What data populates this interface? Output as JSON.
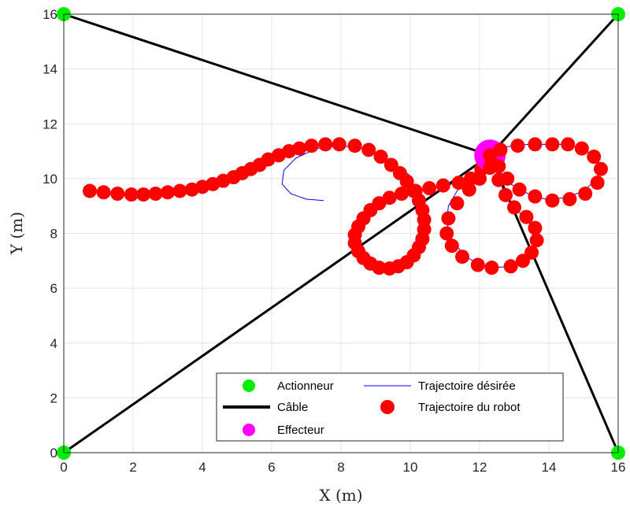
{
  "chart_data": {
    "type": "scatter",
    "xlabel": "X (m)",
    "ylabel": "Y (m)",
    "xlim": [
      0,
      16
    ],
    "ylim": [
      0,
      16
    ],
    "xticks": [
      0,
      2,
      4,
      6,
      8,
      10,
      12,
      14,
      16
    ],
    "yticks": [
      0,
      2,
      4,
      6,
      8,
      10,
      12,
      14,
      16
    ],
    "grid": true,
    "legend_position": "bottom-center",
    "legend": {
      "actuator": "Actionneur",
      "cable": "Câble",
      "effector": "Effecteur",
      "desired": "Trajectoire désirée",
      "robot": "Trajectoire du robot"
    },
    "colors": {
      "actuator": "#00ee00",
      "cable": "#000000",
      "effector": "#ff00ff",
      "desired": "#0000ff",
      "robot": "#ff0000"
    },
    "actuators": [
      [
        0,
        16
      ],
      [
        16,
        16
      ],
      [
        0,
        0
      ],
      [
        16,
        0
      ]
    ],
    "effector": [
      12.3,
      10.85
    ],
    "desired_trajectory": [
      [
        7.5,
        9.2
      ],
      [
        7.0,
        9.25
      ],
      [
        6.55,
        9.45
      ],
      [
        6.3,
        9.8
      ],
      [
        6.35,
        10.3
      ],
      [
        6.7,
        10.75
      ],
      [
        7.3,
        11.1
      ],
      [
        8.0,
        11.2
      ],
      [
        8.6,
        11.1
      ],
      [
        9.1,
        10.85
      ],
      [
        9.6,
        10.5
      ],
      [
        9.95,
        10.15
      ],
      [
        10.05,
        9.8
      ],
      [
        10.3,
        9.55
      ],
      [
        10.4,
        9.0
      ],
      [
        10.45,
        8.4
      ],
      [
        10.4,
        7.8
      ],
      [
        10.15,
        7.25
      ],
      [
        9.75,
        6.85
      ],
      [
        9.25,
        6.75
      ],
      [
        8.75,
        6.95
      ],
      [
        8.45,
        7.4
      ],
      [
        8.45,
        8.0
      ],
      [
        8.65,
        8.6
      ],
      [
        9.1,
        9.15
      ],
      [
        9.6,
        9.45
      ],
      [
        10.2,
        9.55
      ],
      [
        10.8,
        9.7
      ],
      [
        11.4,
        9.85
      ],
      [
        11.85,
        10.05
      ],
      [
        12.1,
        10.4
      ],
      [
        12.3,
        10.85
      ],
      [
        12.7,
        11.15
      ],
      [
        13.4,
        11.25
      ],
      [
        14.1,
        11.25
      ],
      [
        14.6,
        11.25
      ],
      [
        15.1,
        11.0
      ],
      [
        15.45,
        10.6
      ],
      [
        15.4,
        10.0
      ],
      [
        15.0,
        9.55
      ],
      [
        14.5,
        9.3
      ],
      [
        13.9,
        9.25
      ],
      [
        13.4,
        9.45
      ],
      [
        12.9,
        9.8
      ],
      [
        12.55,
        10.3
      ],
      [
        12.3,
        10.85
      ],
      [
        12.0,
        10.4
      ],
      [
        11.7,
        10.0
      ],
      [
        11.35,
        9.55
      ],
      [
        11.1,
        9.0
      ],
      [
        11.05,
        8.4
      ],
      [
        11.2,
        7.8
      ],
      [
        11.55,
        7.2
      ],
      [
        12.0,
        6.85
      ],
      [
        12.4,
        6.75
      ],
      [
        12.9,
        6.8
      ],
      [
        13.3,
        7.0
      ],
      [
        13.55,
        7.4
      ],
      [
        13.6,
        7.95
      ],
      [
        13.4,
        8.45
      ],
      [
        13.0,
        8.95
      ],
      [
        12.7,
        9.5
      ],
      [
        12.55,
        10.1
      ],
      [
        12.4,
        10.7
      ]
    ],
    "robot_trajectory": [
      [
        0.75,
        9.55
      ],
      [
        1.15,
        9.5
      ],
      [
        1.55,
        9.45
      ],
      [
        1.95,
        9.42
      ],
      [
        2.3,
        9.42
      ],
      [
        2.65,
        9.45
      ],
      [
        3.0,
        9.5
      ],
      [
        3.35,
        9.55
      ],
      [
        3.7,
        9.6
      ],
      [
        4.0,
        9.7
      ],
      [
        4.3,
        9.8
      ],
      [
        4.6,
        9.92
      ],
      [
        4.9,
        10.05
      ],
      [
        5.15,
        10.2
      ],
      [
        5.4,
        10.35
      ],
      [
        5.65,
        10.5
      ],
      [
        5.9,
        10.7
      ],
      [
        6.2,
        10.85
      ],
      [
        6.5,
        11.0
      ],
      [
        6.8,
        11.1
      ],
      [
        7.15,
        11.2
      ],
      [
        7.55,
        11.25
      ],
      [
        7.95,
        11.25
      ],
      [
        8.4,
        11.2
      ],
      [
        8.8,
        11.05
      ],
      [
        9.15,
        10.8
      ],
      [
        9.45,
        10.5
      ],
      [
        9.7,
        10.2
      ],
      [
        9.9,
        9.9
      ],
      [
        10.1,
        9.55
      ],
      [
        10.25,
        9.2
      ],
      [
        10.35,
        8.85
      ],
      [
        10.4,
        8.5
      ],
      [
        10.4,
        8.15
      ],
      [
        10.35,
        7.8
      ],
      [
        10.25,
        7.5
      ],
      [
        10.1,
        7.2
      ],
      [
        9.9,
        6.95
      ],
      [
        9.65,
        6.8
      ],
      [
        9.4,
        6.72
      ],
      [
        9.1,
        6.75
      ],
      [
        8.85,
        6.9
      ],
      [
        8.65,
        7.1
      ],
      [
        8.5,
        7.35
      ],
      [
        8.4,
        7.65
      ],
      [
        8.4,
        7.95
      ],
      [
        8.5,
        8.25
      ],
      [
        8.65,
        8.55
      ],
      [
        8.85,
        8.85
      ],
      [
        9.1,
        9.1
      ],
      [
        9.4,
        9.3
      ],
      [
        9.75,
        9.45
      ],
      [
        10.15,
        9.55
      ],
      [
        10.55,
        9.65
      ],
      [
        10.95,
        9.75
      ],
      [
        11.4,
        9.85
      ],
      [
        11.75,
        10.0
      ],
      [
        12.05,
        10.35
      ],
      [
        12.3,
        10.85
      ],
      [
        12.6,
        11.05
      ],
      [
        13.1,
        11.2
      ],
      [
        13.6,
        11.25
      ],
      [
        14.1,
        11.25
      ],
      [
        14.55,
        11.25
      ],
      [
        14.95,
        11.1
      ],
      [
        15.3,
        10.8
      ],
      [
        15.5,
        10.35
      ],
      [
        15.4,
        9.85
      ],
      [
        15.05,
        9.45
      ],
      [
        14.6,
        9.25
      ],
      [
        14.1,
        9.2
      ],
      [
        13.6,
        9.35
      ],
      [
        13.15,
        9.6
      ],
      [
        12.8,
        10.0
      ],
      [
        12.55,
        10.45
      ],
      [
        12.3,
        10.4
      ],
      [
        12.0,
        10.0
      ],
      [
        11.7,
        9.6
      ],
      [
        11.35,
        9.1
      ],
      [
        11.1,
        8.55
      ],
      [
        11.05,
        8.0
      ],
      [
        11.2,
        7.55
      ],
      [
        11.5,
        7.15
      ],
      [
        11.95,
        6.85
      ],
      [
        12.35,
        6.75
      ],
      [
        12.9,
        6.8
      ],
      [
        13.25,
        7.0
      ],
      [
        13.5,
        7.3
      ],
      [
        13.65,
        7.75
      ],
      [
        13.6,
        8.2
      ],
      [
        13.35,
        8.6
      ],
      [
        13.0,
        8.95
      ],
      [
        12.75,
        9.4
      ],
      [
        12.55,
        9.95
      ],
      [
        12.35,
        10.55
      ]
    ]
  }
}
